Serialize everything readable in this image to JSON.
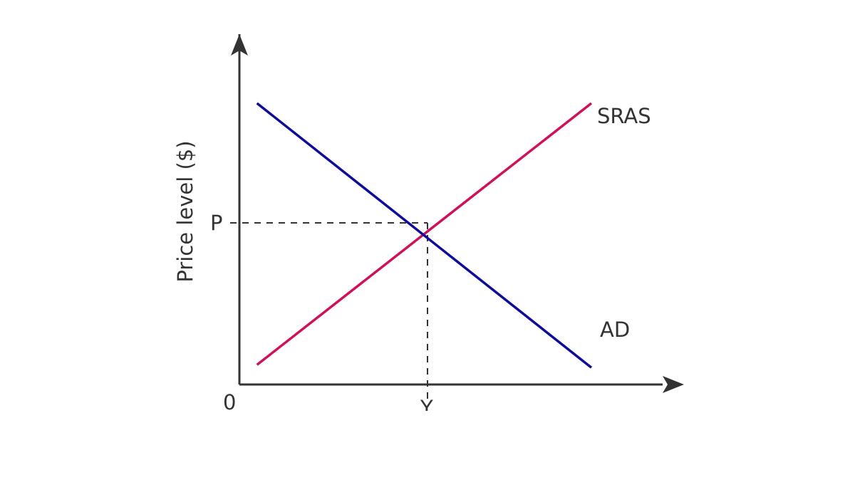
{
  "chart_data": {
    "type": "line",
    "title": "",
    "xlabel": "",
    "ylabel": "Price level ($)",
    "origin_label": "0",
    "grid": false,
    "series": [
      {
        "name": "SRAS",
        "color": "#d0105a",
        "points": [
          [
            0.05,
            0.07
          ],
          [
            1.0,
            1.0
          ]
        ]
      },
      {
        "name": "AD",
        "color": "#0d0d99",
        "points": [
          [
            0.05,
            1.0
          ],
          [
            1.0,
            0.06
          ]
        ]
      }
    ],
    "equilibrium": {
      "x": 0.525,
      "y": 0.535,
      "x_label": "Y",
      "y_label": "P"
    }
  }
}
